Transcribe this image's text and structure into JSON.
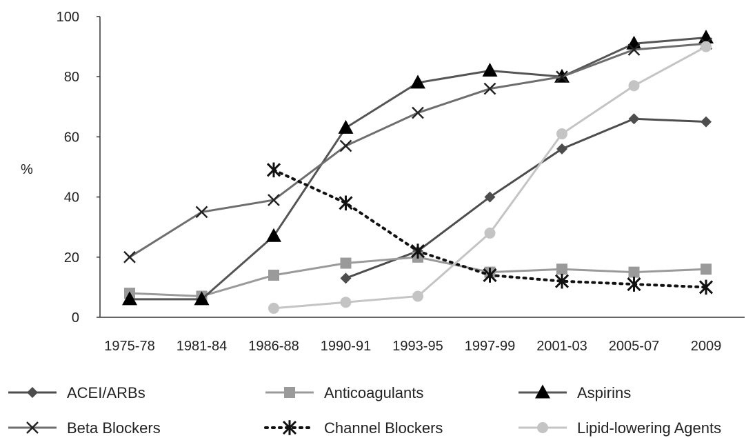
{
  "chart_data": {
    "type": "line",
    "title": "",
    "xlabel": "",
    "ylabel": "%",
    "ylim": [
      0,
      100
    ],
    "yticks": [
      0,
      20,
      40,
      60,
      80,
      100
    ],
    "grid": false,
    "legend_position": "bottom",
    "categories": [
      "1975-78",
      "1981-84",
      "1986-88",
      "1990-91",
      "1993-95",
      "1997-99",
      "2001-03",
      "2005-07",
      "2009"
    ],
    "series": [
      {
        "name": "ACEI/ARBs",
        "color": "#4d4d4d",
        "marker": "diamond",
        "dash": "solid",
        "values": [
          null,
          null,
          null,
          13,
          22,
          40,
          56,
          66,
          65
        ]
      },
      {
        "name": "Anticoagulants",
        "color": "#9a9a9a",
        "marker": "square",
        "dash": "solid",
        "values": [
          8,
          7,
          14,
          18,
          20,
          15,
          16,
          15,
          16
        ]
      },
      {
        "name": "Aspirins",
        "color": "#555555",
        "marker": "triangle",
        "dash": "solid",
        "values": [
          6,
          6,
          27,
          63,
          78,
          82,
          80,
          91,
          93
        ]
      },
      {
        "name": "Beta Blockers",
        "color": "#6e6e6e",
        "marker": "x",
        "dash": "solid",
        "values": [
          20,
          35,
          39,
          57,
          68,
          76,
          80,
          89,
          91
        ]
      },
      {
        "name": "Channel Blockers",
        "color": "#111111",
        "marker": "asterisk",
        "dash": "dotted",
        "values": [
          null,
          null,
          49,
          38,
          22,
          14,
          12,
          11,
          10
        ]
      },
      {
        "name": "Lipid-lowering Agents",
        "color": "#c4c4c4",
        "marker": "circle",
        "dash": "solid",
        "values": [
          null,
          null,
          3,
          5,
          7,
          28,
          61,
          77,
          90
        ]
      }
    ]
  }
}
